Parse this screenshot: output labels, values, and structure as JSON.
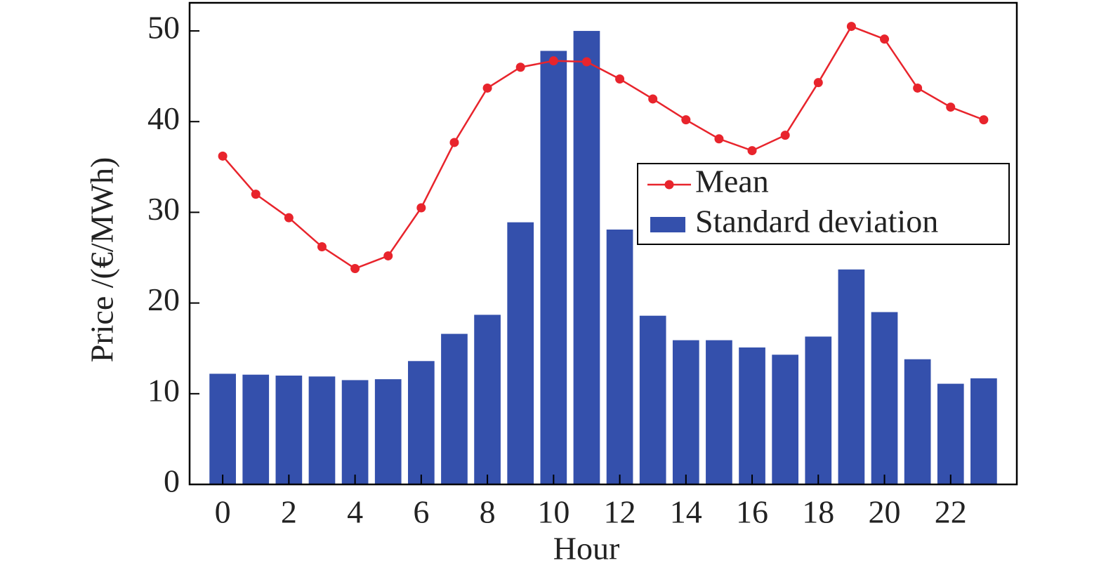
{
  "chart_data": {
    "type": "bar",
    "x_label": "Hour",
    "y_label": "Price /(€/MWh)",
    "x": [
      0,
      1,
      2,
      3,
      4,
      5,
      6,
      7,
      8,
      9,
      10,
      11,
      12,
      13,
      14,
      15,
      16,
      17,
      18,
      19,
      20,
      21,
      22,
      23
    ],
    "series": [
      {
        "name": "Mean",
        "type": "line",
        "color": "#e8242c",
        "values": [
          36.2,
          32.0,
          29.4,
          26.2,
          23.8,
          25.2,
          30.5,
          37.7,
          43.7,
          46.0,
          46.7,
          46.6,
          44.7,
          42.5,
          40.2,
          38.1,
          36.8,
          38.5,
          44.3,
          50.5,
          49.1,
          43.7,
          41.6,
          40.2
        ]
      },
      {
        "name": "Standard deviation",
        "type": "bar",
        "color": "#3450ac",
        "values": [
          12.2,
          12.1,
          12.0,
          11.9,
          11.5,
          11.6,
          13.6,
          16.6,
          18.7,
          28.9,
          47.8,
          50.0,
          28.1,
          18.6,
          15.9,
          15.9,
          15.1,
          14.3,
          16.3,
          23.7,
          19.0,
          13.8,
          11.1,
          11.7
        ]
      }
    ],
    "xlim": [
      -1,
      24
    ],
    "xticks": [
      0,
      2,
      4,
      6,
      8,
      10,
      12,
      14,
      16,
      18,
      20,
      22
    ],
    "ylim": [
      0,
      53.1
    ],
    "yticks": [
      0,
      10,
      20,
      30,
      40,
      50
    ],
    "legend": "right"
  }
}
